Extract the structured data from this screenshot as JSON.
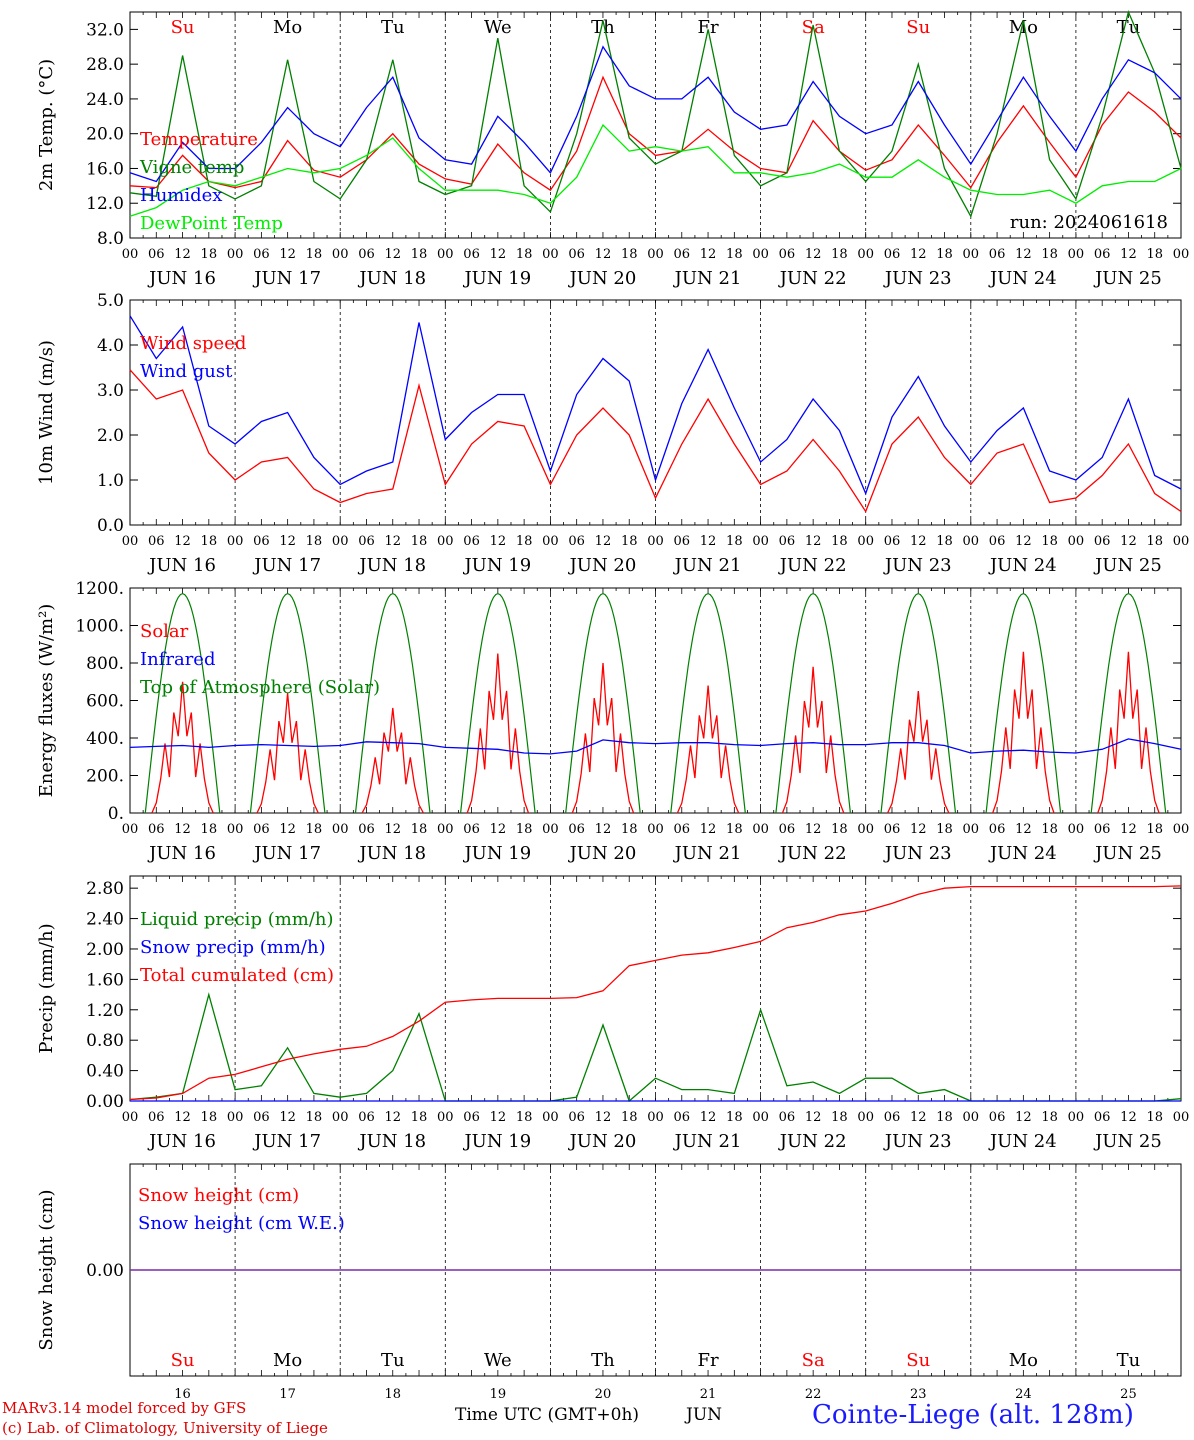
{
  "chart_data": [
    {
      "type": "line",
      "ylabel": "2m Temp. (°C)",
      "ylim": [
        8.0,
        34.0
      ],
      "yticks": [
        "8.0",
        "12.0",
        "16.0",
        "20.0",
        "24.0",
        "28.0",
        "32.0"
      ],
      "x_hours": [
        0,
        6,
        12,
        18,
        24,
        30,
        36,
        42,
        48,
        54,
        60,
        66,
        72,
        78,
        84,
        90,
        96,
        102,
        108,
        114,
        120,
        126,
        132,
        138,
        144,
        150,
        156,
        162,
        168,
        174,
        180,
        186,
        192,
        198,
        204,
        210,
        216,
        222,
        228,
        234,
        240
      ],
      "annotation": "run: 2024061618",
      "series": [
        {
          "name": "Temperature",
          "color": "#ff0000",
          "values": [
            14.0,
            13.8,
            17.5,
            14.5,
            13.8,
            14.5,
            19.2,
            15.8,
            15.0,
            17.0,
            20.0,
            16.5,
            14.8,
            14.2,
            18.8,
            15.5,
            13.5,
            18.0,
            26.5,
            20.0,
            17.5,
            18.0,
            20.5,
            18.0,
            16.0,
            15.5,
            21.5,
            18.0,
            15.8,
            17.0,
            21.0,
            17.5,
            13.8,
            19.0,
            23.2,
            19.0,
            15.0,
            21.0,
            24.8,
            22.5,
            19.5
          ]
        },
        {
          "name": "Vigne temp",
          "color": "#008000",
          "values": [
            13.2,
            12.8,
            29.0,
            14.0,
            12.5,
            14.0,
            28.5,
            14.5,
            12.5,
            17.0,
            28.5,
            14.5,
            13.0,
            14.0,
            31.0,
            14.0,
            11.0,
            20.0,
            33.0,
            19.5,
            16.5,
            18.0,
            32.0,
            17.5,
            14.0,
            15.5,
            32.5,
            18.0,
            14.5,
            18.0,
            28.0,
            16.0,
            10.5,
            20.0,
            33.0,
            17.0,
            12.5,
            22.0,
            34.0,
            27.0,
            16.0
          ]
        },
        {
          "name": "Humidex",
          "color": "#0000ff",
          "values": [
            15.5,
            14.5,
            19.0,
            16.0,
            16.0,
            19.0,
            23.0,
            20.0,
            18.5,
            23.0,
            26.5,
            19.5,
            17.0,
            16.5,
            22.0,
            19.0,
            15.5,
            22.0,
            30.0,
            25.5,
            24.0,
            24.0,
            26.5,
            22.5,
            20.5,
            21.0,
            26.0,
            22.0,
            20.0,
            21.0,
            26.0,
            21.0,
            16.5,
            21.5,
            26.5,
            22.0,
            18.0,
            24.0,
            28.5,
            27.0,
            24.0
          ]
        },
        {
          "name": "DewPoint Temp",
          "color": "#00ee00",
          "values": [
            10.5,
            11.5,
            13.5,
            14.5,
            14.0,
            15.0,
            16.0,
            15.5,
            16.0,
            17.5,
            19.5,
            16.0,
            13.5,
            13.5,
            13.5,
            13.0,
            12.0,
            15.0,
            21.0,
            18.0,
            18.5,
            18.0,
            18.5,
            15.5,
            15.5,
            15.0,
            15.5,
            16.5,
            15.0,
            15.0,
            17.0,
            15.0,
            13.5,
            13.0,
            13.0,
            13.5,
            12.0,
            14.0,
            14.5,
            14.5,
            16.0
          ]
        }
      ]
    },
    {
      "type": "line",
      "ylabel": "10m Wind (m/s)",
      "ylim": [
        0.0,
        5.0
      ],
      "yticks": [
        "0.0",
        "1.0",
        "2.0",
        "3.0",
        "4.0",
        "5.0"
      ],
      "x_hours": [
        0,
        6,
        12,
        18,
        24,
        30,
        36,
        42,
        48,
        54,
        60,
        66,
        72,
        78,
        84,
        90,
        96,
        102,
        108,
        114,
        120,
        126,
        132,
        138,
        144,
        150,
        156,
        162,
        168,
        174,
        180,
        186,
        192,
        198,
        204,
        210,
        216,
        222,
        228,
        234,
        240
      ],
      "series": [
        {
          "name": "Wind speed",
          "color": "#ff0000",
          "values": [
            3.45,
            2.8,
            3.0,
            1.6,
            1.0,
            1.4,
            1.5,
            0.8,
            0.5,
            0.7,
            0.8,
            3.1,
            0.9,
            1.8,
            2.3,
            2.2,
            0.9,
            2.0,
            2.6,
            2.0,
            0.6,
            1.8,
            2.8,
            1.8,
            0.9,
            1.2,
            1.9,
            1.2,
            0.3,
            1.8,
            2.4,
            1.5,
            0.9,
            1.6,
            1.8,
            0.5,
            0.6,
            1.1,
            1.8,
            0.7,
            0.3
          ]
        },
        {
          "name": "Wind gust",
          "color": "#0000ff",
          "values": [
            4.65,
            3.7,
            4.4,
            2.2,
            1.8,
            2.3,
            2.5,
            1.5,
            0.9,
            1.2,
            1.4,
            4.5,
            1.9,
            2.5,
            2.9,
            2.9,
            1.2,
            2.9,
            3.7,
            3.2,
            1.0,
            2.7,
            3.9,
            2.6,
            1.4,
            1.9,
            2.8,
            2.1,
            0.7,
            2.4,
            3.3,
            2.2,
            1.4,
            2.1,
            2.6,
            1.2,
            1.0,
            1.5,
            2.8,
            1.1,
            0.8
          ]
        }
      ]
    },
    {
      "type": "line",
      "ylabel": "Energy fluxes (W/m²)",
      "ylim": [
        0,
        1200
      ],
      "yticks": [
        "0.",
        "200.",
        "400.",
        "600.",
        "800.",
        "1000.",
        "1200."
      ],
      "daily_peaks": {
        "top_of_atmosphere_solar": [
          1170,
          1170,
          1170,
          1170,
          1170,
          1170,
          1170,
          1170,
          1170,
          1170
        ],
        "solar": [
          700,
          640,
          560,
          850,
          800,
          680,
          780,
          650,
          860,
          860
        ]
      },
      "series": [
        {
          "name": "Solar",
          "color": "#ff0000",
          "values": []
        },
        {
          "name": "Infrared",
          "color": "#0000ff",
          "values": [
            350,
            355,
            360,
            350,
            360,
            365,
            360,
            355,
            360,
            380,
            375,
            370,
            350,
            345,
            340,
            320,
            315,
            330,
            390,
            375,
            370,
            375,
            375,
            365,
            360,
            370,
            375,
            365,
            365,
            375,
            375,
            360,
            320,
            330,
            335,
            325,
            320,
            340,
            395,
            370,
            340
          ]
        },
        {
          "name": "Top of Atmosphere (Solar)",
          "color": "#008000",
          "values": []
        }
      ]
    },
    {
      "type": "line",
      "ylabel": "Precip (mm/h)",
      "ylim": [
        0.0,
        2.96
      ],
      "yticks": [
        "0.00",
        "0.40",
        "0.80",
        "1.20",
        "1.60",
        "2.00",
        "2.40",
        "2.80"
      ],
      "series": [
        {
          "name": "Liquid precip (mm/h)",
          "color": "#008000",
          "values": [
            0.02,
            0.05,
            0.1,
            1.4,
            0.15,
            0.2,
            0.7,
            0.1,
            0.05,
            0.1,
            0.4,
            1.15,
            0.0,
            0.0,
            0.0,
            0.0,
            0.0,
            0.05,
            1.0,
            0.0,
            0.3,
            0.15,
            0.15,
            0.1,
            1.2,
            0.2,
            0.25,
            0.1,
            0.3,
            0.3,
            0.1,
            0.15,
            0.0,
            0.0,
            0.0,
            0.0,
            0.0,
            0.0,
            0.0,
            0.0,
            0.03
          ]
        },
        {
          "name": "Snow precip (mm/h)",
          "color": "#0000ff",
          "values": [
            0,
            0,
            0,
            0,
            0,
            0,
            0,
            0,
            0,
            0,
            0,
            0,
            0,
            0,
            0,
            0,
            0,
            0,
            0,
            0,
            0,
            0,
            0,
            0,
            0,
            0,
            0,
            0,
            0,
            0,
            0,
            0,
            0,
            0,
            0,
            0,
            0,
            0,
            0,
            0,
            0
          ]
        },
        {
          "name": "Total cumulated (cm)",
          "color": "#ff0000",
          "values": [
            0.02,
            0.04,
            0.1,
            0.3,
            0.35,
            0.45,
            0.55,
            0.62,
            0.68,
            0.72,
            0.85,
            1.05,
            1.3,
            1.33,
            1.35,
            1.35,
            1.35,
            1.36,
            1.45,
            1.78,
            1.85,
            1.92,
            1.95,
            2.02,
            2.1,
            2.28,
            2.35,
            2.45,
            2.5,
            2.6,
            2.72,
            2.8,
            2.82,
            2.82,
            2.82,
            2.82,
            2.82,
            2.82,
            2.82,
            2.82,
            2.83
          ]
        }
      ]
    },
    {
      "type": "line",
      "ylabel": "Snow height (cm)",
      "yticks": [
        "0.00"
      ],
      "series": [
        {
          "name": "Snow height (cm)",
          "color": "#ff0000",
          "values": [
            0,
            0
          ]
        },
        {
          "name": "Snow height (cm W.E.)",
          "color": "#0000ff",
          "values": [
            0,
            0
          ]
        }
      ]
    }
  ],
  "days": [
    {
      "abbr": "Su",
      "date": "JUN 16",
      "num": "16",
      "weekend": true
    },
    {
      "abbr": "Mo",
      "date": "JUN 17",
      "num": "17",
      "weekend": false
    },
    {
      "abbr": "Tu",
      "date": "JUN 18",
      "num": "18",
      "weekend": false
    },
    {
      "abbr": "We",
      "date": "JUN 19",
      "num": "19",
      "weekend": false
    },
    {
      "abbr": "Th",
      "date": "JUN 20",
      "num": "20",
      "weekend": false
    },
    {
      "abbr": "Fr",
      "date": "JUN 21",
      "num": "21",
      "weekend": false
    },
    {
      "abbr": "Sa",
      "date": "JUN 22",
      "num": "22",
      "weekend": true
    },
    {
      "abbr": "Su",
      "date": "JUN 23",
      "num": "23",
      "weekend": true
    },
    {
      "abbr": "Mo",
      "date": "JUN 24",
      "num": "24",
      "weekend": false
    },
    {
      "abbr": "Tu",
      "date": "JUN 25",
      "num": "25",
      "weekend": false
    }
  ],
  "hour_ticks": [
    "00",
    "06",
    "12",
    "18"
  ],
  "colors": {
    "weekend": "#ff0000",
    "weekday": "#000000",
    "axis": "#000000"
  },
  "footer": {
    "model_line": "MARv3.14 model forced by GFS",
    "lab_line": "(c) Lab. of Climatology, University of Liege",
    "time_axis": "Time UTC (GMT+0h)",
    "month": "JUN",
    "station": "Cointe-Liege (alt. 128m)"
  }
}
